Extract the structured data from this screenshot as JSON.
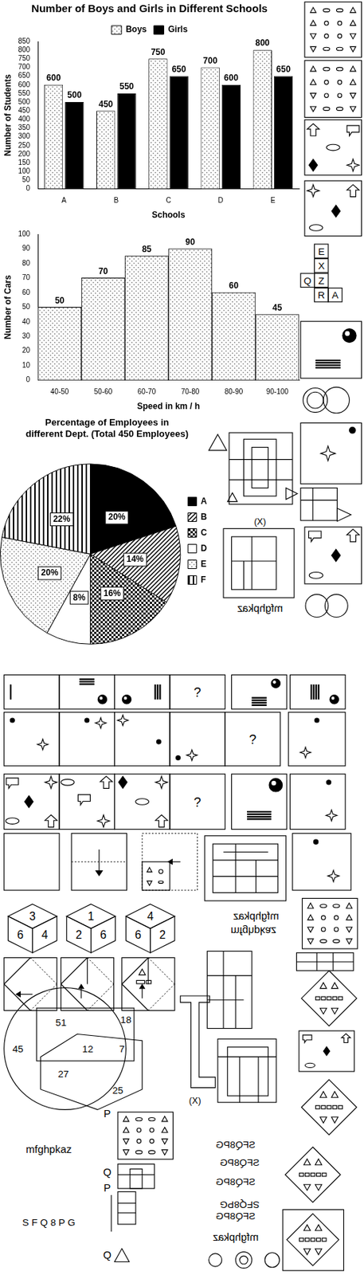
{
  "chart_data": [
    {
      "type": "bar",
      "title": "Number of Boys and Girls in Different Schools",
      "categories": [
        "A",
        "B",
        "C",
        "D",
        "E"
      ],
      "series": [
        {
          "name": "Boys",
          "color": "#808080",
          "values": [
            600,
            450,
            750,
            700,
            800
          ]
        },
        {
          "name": "Girls",
          "color": "#000000",
          "values": [
            500,
            550,
            650,
            600,
            650
          ]
        }
      ],
      "x_label": "Schools",
      "y_label": "Number of Students",
      "ylim": [
        0,
        850
      ],
      "yticks": [
        0,
        50,
        100,
        150,
        200,
        250,
        300,
        350,
        400,
        450,
        500,
        550,
        600,
        650,
        700,
        750,
        800,
        850
      ],
      "grid": false,
      "legend": "top",
      "data_labels": true
    },
    {
      "type": "histogram",
      "categories": [
        "40-50",
        "50-60",
        "60-70",
        "70-80",
        "80-90",
        "90-100"
      ],
      "values": [
        50,
        70,
        85,
        90,
        60,
        45
      ],
      "color": "#808080",
      "x_label": "Speed in km / h",
      "y_label": "Number of Cars",
      "ylim": [
        0,
        100
      ],
      "yticks": [
        0,
        10,
        20,
        30,
        40,
        50,
        60,
        70,
        80,
        90,
        100
      ],
      "grid": false,
      "data_labels": true
    },
    {
      "type": "pie",
      "title": [
        "Percentage of Employees in",
        "different Dept. (Total 450 Employees)"
      ],
      "categories": [
        "A",
        "B",
        "C",
        "D",
        "E",
        "F"
      ],
      "values": [
        20,
        14,
        16,
        8,
        20,
        22
      ],
      "value_labels": [
        "20%",
        "14%",
        "16%",
        "8%",
        "20%",
        "22%"
      ],
      "colors": [
        "#000000",
        "#000000",
        "#000000",
        "#ffffff",
        "#808080",
        "#000000"
      ],
      "legend": "right",
      "data_labels": true
    }
  ],
  "figures": {
    "cube_net": [
      "E",
      "X",
      "Q",
      "Z",
      "R",
      "A"
    ],
    "question_marks": [
      "?",
      "?",
      "?"
    ],
    "figure_labels": [
      "(X)",
      "(X)"
    ],
    "dice": [
      {
        "top": 3,
        "left": 6,
        "right": 4
      },
      {
        "top": 1,
        "left": 2,
        "right": 6
      },
      {
        "top": 4,
        "left": 6,
        "right": 2
      }
    ],
    "venn": {
      "circle": 45,
      "circle_rectangle": 51,
      "rectangle": 18,
      "all": 12,
      "rectangle_hexagon": 7,
      "circle_hexagon": 27,
      "hexagon": 25
    },
    "word": "mfghpkaz",
    "code": "SFQ8PG",
    "spaced_code": "S F Q 8 P G",
    "answer_letters": [
      "P",
      "Q",
      "P",
      "Q"
    ]
  }
}
